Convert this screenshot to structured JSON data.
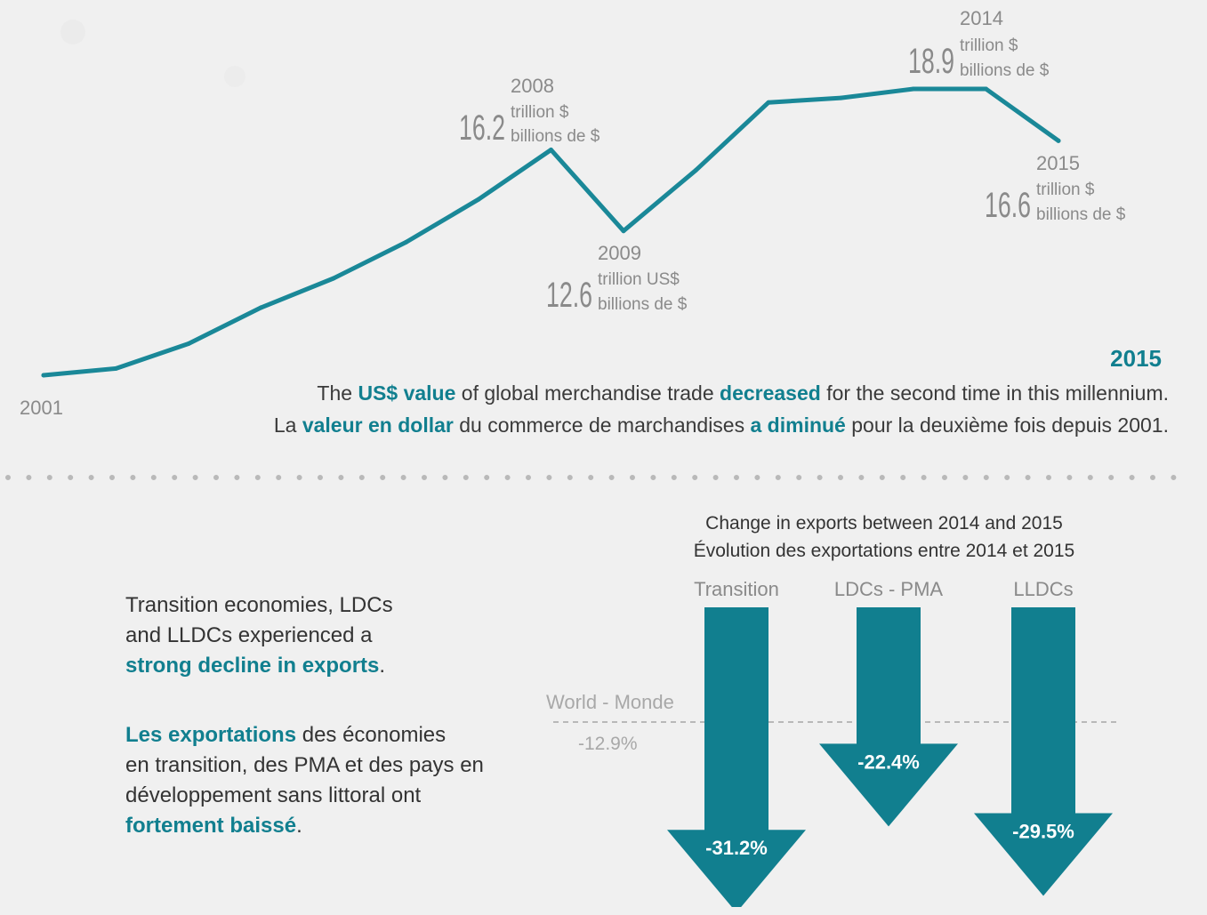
{
  "colors": {
    "accent": "#117f8f",
    "line": "#1a8898",
    "grey_text": "#8a8a8a",
    "background": "#f0f0f0"
  },
  "chart_data": [
    {
      "type": "line",
      "title": "",
      "x": [
        2001,
        2002,
        2003,
        2004,
        2005,
        2006,
        2007,
        2008,
        2009,
        2010,
        2011,
        2012,
        2013,
        2014,
        2015
      ],
      "series": [
        {
          "values": [
            6.2,
            6.5,
            7.6,
            9.2,
            10.5,
            12.1,
            14.0,
            16.2,
            12.6,
            15.3,
            18.3,
            18.5,
            18.9,
            18.9,
            16.6
          ]
        }
      ],
      "ylim": [
        0,
        20
      ],
      "start_label": "2001",
      "annotations": [
        {
          "year": "2008",
          "value": "16.2",
          "unit_en": "trillion $",
          "unit_fr": "billions de $"
        },
        {
          "year": "2009",
          "value": "12.6",
          "unit_en": "trillion US$",
          "unit_fr": "billions de $"
        },
        {
          "year": "2014",
          "value": "18.9",
          "unit_en": "trillion $",
          "unit_fr": "billions de $"
        },
        {
          "year": "2015",
          "value": "16.6",
          "unit_en": "trillion $",
          "unit_fr": "billions de $"
        }
      ]
    },
    {
      "type": "bar",
      "title": "Change in exports between 2014 and 2015",
      "subtitle": "Évolution des exportations entre 2014 et 2015",
      "categories": [
        "Transition",
        "LDCs - PMA",
        "LLDCs"
      ],
      "values": [
        -31.2,
        -22.4,
        -29.5
      ],
      "value_labels": [
        "-31.2%",
        "-22.4%",
        "-29.5%"
      ],
      "reference": {
        "label": "World - Monde",
        "value": -12.9,
        "value_label": "-12.9%"
      }
    }
  ],
  "headline": {
    "year": "2015",
    "en": {
      "p1": "The ",
      "b1": "US$ value",
      "p2": " of global merchandise trade ",
      "b2": "decreased",
      "p3": " for the second time in this millennium."
    },
    "fr": {
      "p1": "La ",
      "b1": "valeur en dollar",
      "p2": " du commerce de marchandises ",
      "b2": "a diminué",
      "p3": " pour la deuxième fois depuis 2001."
    }
  },
  "note": {
    "en": {
      "l1": "Transition economies, LDCs",
      "l2": "and LLDCs experienced a",
      "b1": "strong decline in exports",
      "p1": "."
    },
    "fr": {
      "b1": "Les exportations",
      "p1": " des économies",
      "l2": "en transition, des PMA et des pays en",
      "l3": "développement sans littoral ont",
      "b2": "fortement baissé",
      "p2": "."
    }
  }
}
